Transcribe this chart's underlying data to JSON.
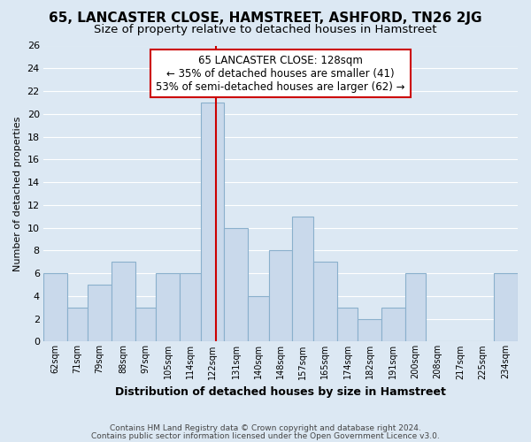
{
  "title": "65, LANCASTER CLOSE, HAMSTREET, ASHFORD, TN26 2JG",
  "subtitle": "Size of property relative to detached houses in Hamstreet",
  "xlabel": "Distribution of detached houses by size in Hamstreet",
  "ylabel": "Number of detached properties",
  "bar_values": [
    6,
    3,
    5,
    7,
    3,
    6,
    6,
    21,
    10,
    4,
    8,
    11,
    7,
    3,
    2,
    3,
    6,
    0,
    0,
    0,
    6
  ],
  "bar_labels": [
    "62sqm",
    "71sqm",
    "79sqm",
    "88sqm",
    "97sqm",
    "105sqm",
    "114sqm",
    "122sqm",
    "131sqm",
    "140sqm",
    "148sqm",
    "157sqm",
    "165sqm",
    "174sqm",
    "182sqm",
    "191sqm",
    "200sqm",
    "208sqm",
    "217sqm",
    "225sqm",
    "234sqm"
  ],
  "bar_color": "#c9d9eb",
  "bar_edge_color": "#8ab0cc",
  "grid_color": "#ffffff",
  "bg_color": "#dce8f3",
  "property_line_color": "#cc0000",
  "property_line_x": 128,
  "legend_title": "65 LANCASTER CLOSE: 128sqm",
  "legend_line1": "← 35% of detached houses are smaller (41)",
  "legend_line2": "53% of semi-detached houses are larger (62) →",
  "legend_border_color": "#cc0000",
  "ylim": [
    0,
    26
  ],
  "yticks": [
    0,
    2,
    4,
    6,
    8,
    10,
    12,
    14,
    16,
    18,
    20,
    22,
    24,
    26
  ],
  "footer_line1": "Contains HM Land Registry data © Crown copyright and database right 2024.",
  "footer_line2": "Contains public sector information licensed under the Open Government Licence v3.0.",
  "title_fontsize": 11,
  "subtitle_fontsize": 9.5,
  "bin_edges": [
    62,
    71,
    79,
    88,
    97,
    105,
    114,
    122,
    131,
    140,
    148,
    157,
    165,
    174,
    182,
    191,
    200,
    208,
    217,
    225,
    234,
    243
  ]
}
